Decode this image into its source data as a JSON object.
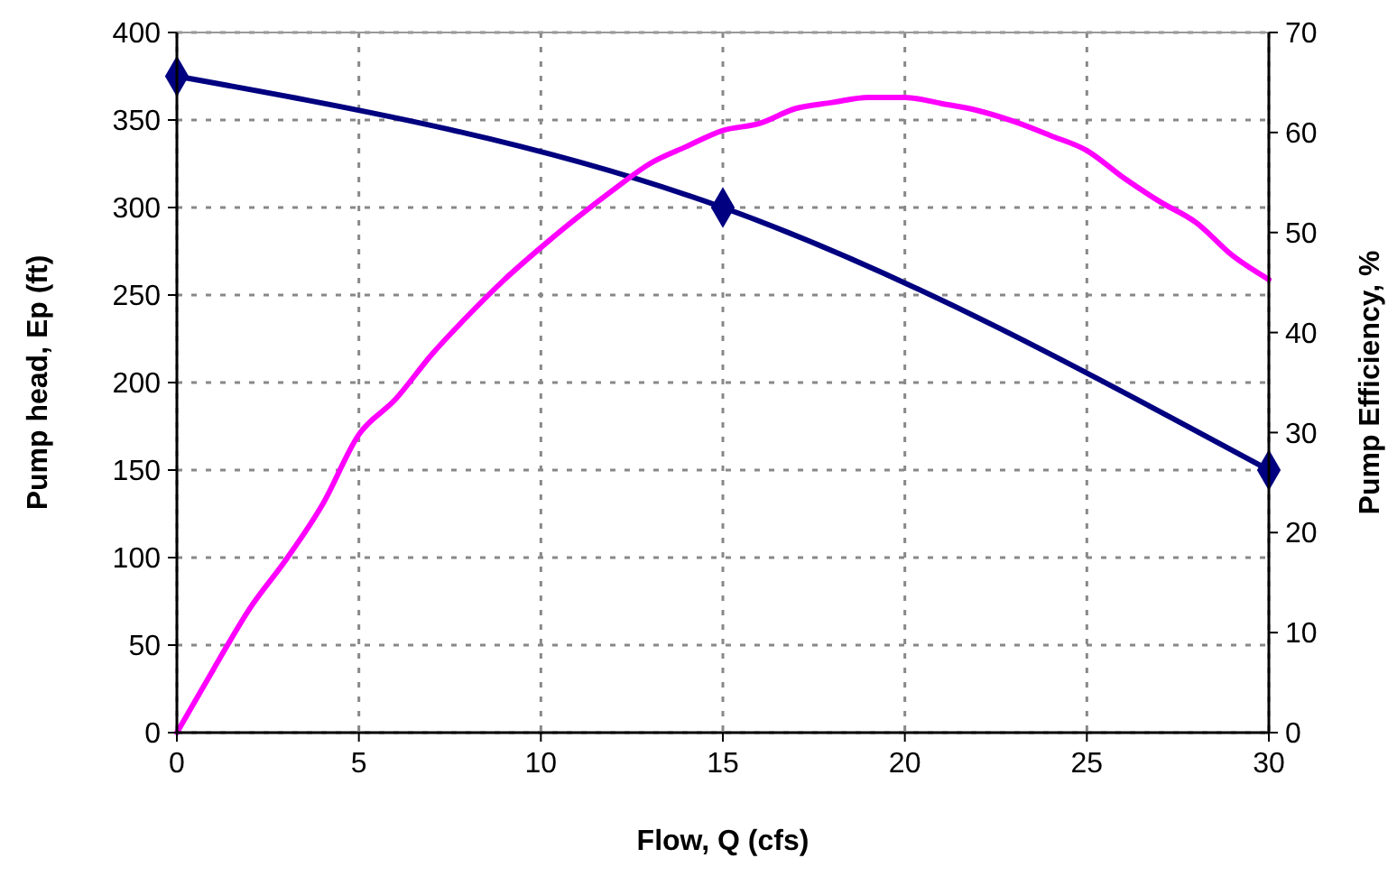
{
  "chart_data": {
    "type": "line",
    "xlabel": "Flow, Q (cfs)",
    "ylabel": "Pump head, Ep (ft)",
    "y2label": "Pump Efficiency, %",
    "xlim": [
      0,
      30
    ],
    "xticks": [
      0,
      5,
      10,
      15,
      20,
      25,
      30
    ],
    "ylim": [
      0,
      400
    ],
    "yticks": [
      0,
      50,
      100,
      150,
      200,
      250,
      300,
      350,
      400
    ],
    "y2lim": [
      0,
      70
    ],
    "y2ticks": [
      0,
      10,
      20,
      30,
      40,
      50,
      60,
      70
    ],
    "grid": true,
    "series": [
      {
        "color": "#000080",
        "marker": "diamond",
        "x": [
          0,
          15,
          30
        ],
        "values": [
          375,
          300,
          150
        ]
      },
      {
        "color": "#ff00ff",
        "marker": "none",
        "axis": "y2",
        "x": [
          0,
          1,
          2,
          3,
          4,
          5,
          6,
          7,
          8,
          9,
          10,
          11,
          12,
          13,
          14,
          15,
          16,
          17,
          18,
          19,
          20,
          21,
          22,
          23,
          24,
          25,
          26,
          27,
          28,
          29,
          30
        ],
        "values": [
          0,
          6.3,
          12.4,
          17.3,
          22.8,
          29.8,
          33.3,
          37.8,
          41.7,
          45.3,
          48.5,
          51.5,
          54.3,
          56.9,
          58.6,
          60.2,
          60.9,
          62.4,
          63.0,
          63.5,
          63.5,
          62.9,
          62.2,
          61.1,
          59.7,
          58.2,
          55.5,
          53.1,
          51.0,
          47.7,
          45.3
        ]
      }
    ]
  }
}
